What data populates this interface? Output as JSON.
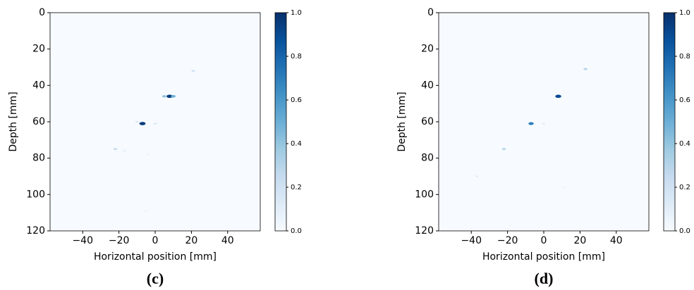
{
  "chart_data": [
    {
      "type": "heatmap",
      "panel_label": "(c)",
      "x_label": "Horizontal position [mm]",
      "y_label": "Depth [mm]",
      "colormap": "Blues",
      "background_value": 0,
      "xlim": [
        -58,
        58
      ],
      "ylim": [
        120,
        0
      ],
      "xticks": [
        {
          "value": -40,
          "label": "−40"
        },
        {
          "value": -20,
          "label": "−20"
        },
        0,
        20,
        40
      ],
      "yticks": [
        0,
        20,
        40,
        60,
        80,
        100,
        120
      ],
      "clim": [
        0,
        1
      ],
      "cticks": [
        {
          "value": 0,
          "label": "0.0"
        },
        0.2,
        0.4,
        0.6,
        0.8,
        {
          "value": 1,
          "label": "1.0"
        }
      ],
      "x": [
        8,
        -7,
        21,
        10,
        5,
        -22,
        -17,
        0,
        -10,
        -4,
        -5
      ],
      "y": [
        46,
        61,
        32,
        46,
        46,
        75,
        76,
        61,
        60,
        78,
        109
      ],
      "values": [
        0.95,
        0.95,
        0.2,
        0.5,
        0.4,
        0.25,
        0.1,
        0.15,
        0.15,
        0.05,
        0.05
      ]
    },
    {
      "type": "heatmap",
      "panel_label": "(d)",
      "x_label": "Horizontal position [mm]",
      "y_label": "Depth [mm]",
      "colormap": "Blues",
      "background_value": 0,
      "xlim": [
        -58,
        58
      ],
      "ylim": [
        120,
        0
      ],
      "xticks": [
        {
          "value": -40,
          "label": "−40"
        },
        {
          "value": -20,
          "label": "−20"
        },
        0,
        20,
        40
      ],
      "yticks": [
        0,
        20,
        40,
        60,
        80,
        100,
        120
      ],
      "clim": [
        0,
        1
      ],
      "cticks": [
        {
          "value": 0,
          "label": "0.0"
        },
        0.2,
        0.4,
        0.6,
        0.8,
        {
          "value": 1,
          "label": "1.0"
        }
      ],
      "x": [
        8,
        23,
        -7,
        -22,
        -37,
        0,
        11
      ],
      "y": [
        46,
        31,
        61,
        75,
        90,
        61,
        96
      ],
      "values": [
        0.9,
        0.3,
        0.7,
        0.3,
        0.1,
        0.1,
        0.05
      ]
    }
  ]
}
